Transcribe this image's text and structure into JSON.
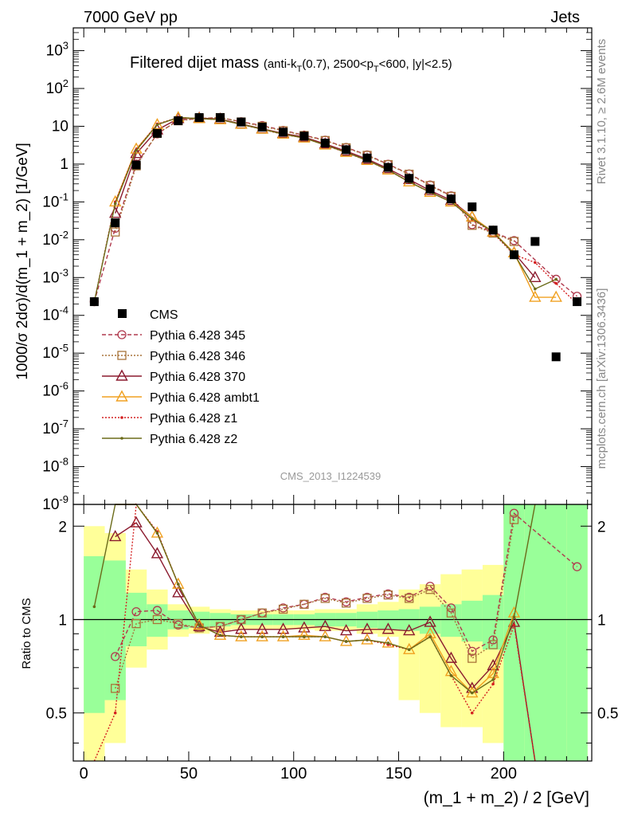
{
  "header": {
    "left": "7000 GeV pp",
    "right": "Jets"
  },
  "title": {
    "main": "Filtered dijet mass",
    "sub": "(anti-k_T(0.7), 2500<p_T<600, |y|<2.5)"
  },
  "side_labels": {
    "rivet": "Rivet 3.1.10, ≥ 2.6M events",
    "mcplots": "mcplots.cern.ch [arXiv:1306.3436]"
  },
  "watermark": "CMS_2013_I1224539",
  "chart_data": {
    "type": "scatter",
    "xlabel": "(m_1 + m_2) / 2 [GeV]",
    "ylabel": "1000/σ 2dσ)/d(m_1 + m_2) [1/GeV]",
    "ratio_ylabel": "Ratio to CMS",
    "xlim": [
      -5,
      242
    ],
    "ylim": [
      1e-09,
      4000
    ],
    "ratio_ylim": [
      0.35,
      2.35
    ],
    "yscale": "log",
    "ratio_yscale": "log",
    "x_ticks": [
      0,
      50,
      100,
      150,
      200
    ],
    "y_ticks": [
      "10^-9",
      "10^-8",
      "10^-7",
      "10^-6",
      "10^-5",
      "10^-4",
      "10^-3",
      "10^-2",
      "10^-1",
      "1",
      "10",
      "10^2",
      "10^3"
    ],
    "ratio_ticks": [
      "0.5",
      "1",
      "2"
    ],
    "legend_position": "middle-left",
    "bins_x": [
      5,
      15,
      25,
      35,
      45,
      55,
      65,
      75,
      85,
      95,
      105,
      115,
      125,
      135,
      145,
      155,
      165,
      175,
      185,
      195,
      205,
      215,
      225,
      235
    ],
    "reference": {
      "name": "CMS",
      "y": [
        0.00023,
        0.028,
        0.95,
        6.5,
        14,
        17,
        17,
        13,
        9.5,
        7,
        5.5,
        3.6,
        2.4,
        1.45,
        0.82,
        0.42,
        0.22,
        0.12,
        0.074,
        0.018,
        0.004,
        0.009,
        8e-06,
        0.00023
      ]
    },
    "series": [
      {
        "name": "Pythia 6.428 345",
        "color": "#b03a4e",
        "marker": "circle",
        "dash": "5,3",
        "y": [
          0.00023,
          0.02,
          1.0,
          6.3,
          14.5,
          16,
          17,
          13.2,
          10.5,
          7.8,
          5.8,
          4.3,
          2.75,
          1.75,
          0.99,
          0.55,
          0.28,
          0.145,
          0.025,
          0.016,
          0.0095,
          null,
          0.0009,
          0.00032
        ],
        "ratio": [
          null,
          0.76,
          1.06,
          1.07,
          0.96,
          0.94,
          0.95,
          1.0,
          1.05,
          1.09,
          1.12,
          1.18,
          1.14,
          1.18,
          1.21,
          1.18,
          1.28,
          1.09,
          0.79,
          0.86,
          2.2,
          null,
          null,
          1.48
        ]
      },
      {
        "name": "Pythia 6.428 346",
        "color": "#a8743a",
        "marker": "square",
        "dash": "2,2",
        "y": [
          null,
          0.016,
          0.9,
          6.5,
          14,
          16,
          17,
          13,
          10,
          7.6,
          5.7,
          4.2,
          2.7,
          1.7,
          0.97,
          0.54,
          0.27,
          0.14,
          0.024,
          0.015,
          0.009,
          null,
          null,
          null
        ],
        "ratio": [
          null,
          0.6,
          0.97,
          1.0,
          0.97,
          0.94,
          0.95,
          1.0,
          1.05,
          1.08,
          1.12,
          1.17,
          1.13,
          1.17,
          1.2,
          1.17,
          1.25,
          1.05,
          0.75,
          0.83,
          2.1,
          null,
          null,
          null
        ]
      },
      {
        "name": "Pythia 6.428 370",
        "color": "#8b1a2e",
        "marker": "triangle",
        "dash": "",
        "y": [
          null,
          0.05,
          1.9,
          8,
          16,
          16.5,
          15.5,
          11.5,
          8.6,
          6.5,
          5.2,
          3.4,
          2.2,
          1.35,
          0.76,
          0.39,
          0.2,
          0.11,
          0.04,
          0.016,
          0.0045,
          0.001,
          null,
          null
        ],
        "ratio": [
          null,
          1.85,
          2.05,
          1.63,
          1.22,
          0.95,
          0.91,
          0.93,
          0.93,
          0.93,
          0.94,
          0.95,
          0.92,
          0.93,
          0.93,
          0.92,
          0.98,
          0.75,
          0.6,
          0.71,
          0.98,
          0.3,
          null,
          null
        ]
      },
      {
        "name": "Pythia 6.428 ambt1",
        "color": "#f0a020",
        "marker": "triangle",
        "dash": "",
        "y": [
          null,
          0.1,
          2.5,
          11,
          17,
          16,
          15,
          11.3,
          8.4,
          6.2,
          4.9,
          3.2,
          2.05,
          1.25,
          0.7,
          0.34,
          0.18,
          0.1,
          0.04,
          0.016,
          0.0045,
          0.0003,
          0.0003,
          null
        ],
        "ratio": [
          null,
          2.8,
          2.9,
          1.9,
          1.3,
          0.96,
          0.89,
          0.88,
          0.88,
          0.88,
          0.89,
          0.88,
          0.85,
          0.86,
          0.84,
          0.8,
          0.9,
          0.68,
          0.58,
          0.67,
          1.05,
          null,
          null,
          null
        ]
      },
      {
        "name": "Pythia 6.428 z1",
        "color": "#d42020",
        "marker": "dot",
        "dash": "2,2",
        "y": [
          0.00023,
          0.1,
          2.4,
          11.5,
          17,
          16,
          15,
          11.2,
          8.3,
          6.1,
          4.9,
          3.2,
          2.0,
          1.25,
          0.69,
          0.34,
          0.18,
          0.1,
          0.035,
          0.015,
          0.004,
          0.0025,
          0.0007,
          0.0002
        ],
        "ratio": [
          0.3,
          0.5,
          2.9,
          1.92,
          1.3,
          0.96,
          0.89,
          0.88,
          0.88,
          0.88,
          0.88,
          0.88,
          0.85,
          0.86,
          0.83,
          0.8,
          0.88,
          0.66,
          0.5,
          0.62,
          0.96,
          0.2,
          null,
          null
        ]
      },
      {
        "name": "Pythia 6.428 z2",
        "color": "#6b6b1a",
        "marker": "dot",
        "dash": "",
        "y": [
          0.00023,
          0.09,
          2.3,
          11,
          17,
          16,
          15,
          11.2,
          8.4,
          6.2,
          4.9,
          3.2,
          2.05,
          1.25,
          0.7,
          0.34,
          0.18,
          0.1,
          0.036,
          0.016,
          0.0042,
          0.0005,
          0.0009,
          null
        ],
        "ratio": [
          1.1,
          2.8,
          2.9,
          1.9,
          1.3,
          0.96,
          0.89,
          0.88,
          0.88,
          0.88,
          0.88,
          0.88,
          0.85,
          0.86,
          0.84,
          0.8,
          0.88,
          0.66,
          0.58,
          0.64,
          1.02,
          2.5,
          null,
          null
        ]
      }
    ],
    "ratio_bands": {
      "inner": [
        [
          0.5,
          1.6
        ],
        [
          0.55,
          1.55
        ],
        [
          0.82,
          1.22
        ],
        [
          0.88,
          1.12
        ],
        [
          0.93,
          1.07
        ],
        [
          0.94,
          1.06
        ],
        [
          0.95,
          1.05
        ],
        [
          0.96,
          1.04
        ],
        [
          0.96,
          1.04
        ],
        [
          0.96,
          1.04
        ],
        [
          0.96,
          1.04
        ],
        [
          0.95,
          1.05
        ],
        [
          0.95,
          1.05
        ],
        [
          0.94,
          1.06
        ],
        [
          0.93,
          1.07
        ],
        [
          0.92,
          1.08
        ],
        [
          0.9,
          1.1
        ],
        [
          0.88,
          1.12
        ],
        [
          0.85,
          1.15
        ],
        [
          0.8,
          1.2
        ],
        [
          0.35,
          2.35
        ],
        [
          0.35,
          2.35
        ],
        [
          0.35,
          2.35
        ],
        [
          0.35,
          2.35
        ]
      ],
      "outer": [
        [
          0.35,
          2.0
        ],
        [
          0.4,
          1.9
        ],
        [
          0.7,
          1.45
        ],
        [
          0.8,
          1.25
        ],
        [
          0.88,
          1.12
        ],
        [
          0.9,
          1.1
        ],
        [
          0.92,
          1.08
        ],
        [
          0.93,
          1.07
        ],
        [
          0.93,
          1.07
        ],
        [
          0.93,
          1.07
        ],
        [
          0.93,
          1.07
        ],
        [
          0.92,
          1.08
        ],
        [
          0.92,
          1.08
        ],
        [
          0.9,
          1.12
        ],
        [
          0.88,
          1.14
        ],
        [
          0.55,
          1.25
        ],
        [
          0.5,
          1.3
        ],
        [
          0.45,
          1.4
        ],
        [
          0.45,
          1.45
        ],
        [
          0.4,
          1.5
        ],
        [
          0.35,
          2.35
        ],
        [
          0.35,
          2.35
        ],
        [
          0.35,
          2.35
        ],
        [
          0.35,
          2.35
        ]
      ]
    }
  }
}
